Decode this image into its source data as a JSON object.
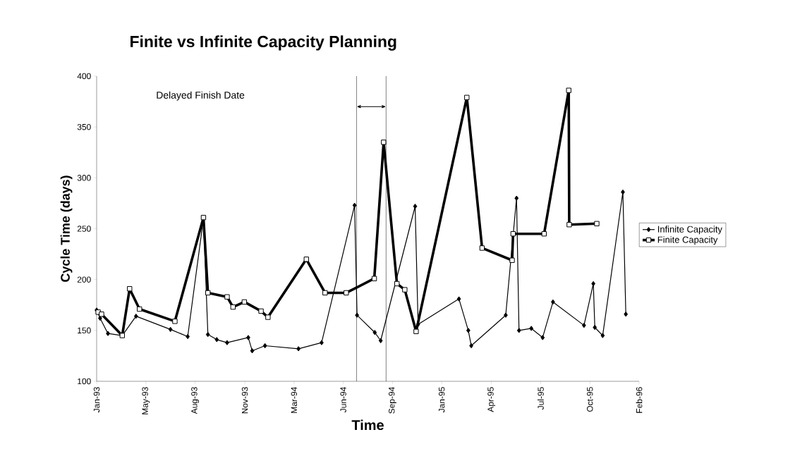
{
  "chart_data": {
    "type": "line",
    "title": "Finite vs Infinite Capacity Planning",
    "xlabel": "Time",
    "ylabel": "Cycle Time (days)",
    "annotations": [
      "Delayed Finish Date"
    ],
    "xlim": [
      "1993-01-31",
      "1996-02-07"
    ],
    "ylim": [
      100,
      400
    ],
    "xticks": [
      {
        "value": "1993-01-31",
        "label": "Jan-93"
      },
      {
        "value": "1993-05-11",
        "label": "May-93"
      },
      {
        "value": "1993-08-19",
        "label": "Aug-93"
      },
      {
        "value": "1993-11-28",
        "label": "Nov-93"
      },
      {
        "value": "1994-03-08",
        "label": "Mar-94"
      },
      {
        "value": "1994-06-16",
        "label": "Jun-94"
      },
      {
        "value": "1994-09-24",
        "label": "Sep-94"
      },
      {
        "value": "1995-01-02",
        "label": "Jan-95"
      },
      {
        "value": "1995-04-13",
        "label": "Apr-95"
      },
      {
        "value": "1995-07-22",
        "label": "Jul-95"
      },
      {
        "value": "1995-10-30",
        "label": "Oct-95"
      },
      {
        "value": "1996-02-07",
        "label": "Feb-96"
      }
    ],
    "yticks": [
      100,
      150,
      200,
      250,
      300,
      350,
      400
    ],
    "ref_lines": [
      {
        "axis": "x",
        "value": "1994-07-13"
      },
      {
        "axis": "x",
        "value": "1994-09-11"
      }
    ],
    "legend": "right",
    "series": [
      {
        "name": "Infinite Capacity",
        "color": "#000000",
        "marker": "diamond",
        "x": [
          "1993-01-31",
          "1993-02-07",
          "1993-02-23",
          "1993-03-24",
          "1993-04-21",
          "1993-06-30",
          "1993-08-04",
          "1993-09-05",
          "1993-09-14",
          "1993-10-02",
          "1993-10-23",
          "1993-12-05",
          "1993-12-13",
          "1994-01-08",
          "1994-03-17",
          "1994-05-03",
          "1994-07-09",
          "1994-07-14",
          "1994-08-19",
          "1994-08-31",
          "1994-11-09",
          "1994-11-15",
          "1995-02-06",
          "1995-02-25",
          "1995-03-03",
          "1995-05-12",
          "1995-06-03",
          "1995-06-08",
          "1995-07-03",
          "1995-07-26",
          "1995-08-16",
          "1995-10-18",
          "1995-11-06",
          "1995-11-09",
          "1995-11-25",
          "1996-01-05",
          "1996-01-11"
        ],
        "values": [
          170,
          162,
          147,
          145,
          164,
          151,
          144,
          260,
          146,
          141,
          138,
          143,
          130,
          135,
          132,
          138,
          273,
          165,
          148,
          140,
          272,
          156,
          181,
          150,
          135,
          165,
          280,
          150,
          152,
          143,
          178,
          155,
          196,
          153,
          145,
          286,
          166
        ]
      },
      {
        "name": "Finite Capacity",
        "color": "#000000",
        "marker": "square",
        "x": [
          "1993-02-03",
          "1993-02-10",
          "1993-03-24",
          "1993-04-08",
          "1993-04-28",
          "1993-07-09",
          "1993-09-05",
          "1993-09-14",
          "1993-10-23",
          "1993-11-04",
          "1993-11-27",
          "1993-12-31",
          "1994-01-14",
          "1994-04-02",
          "1994-05-10",
          "1994-06-22",
          "1994-08-18",
          "1994-09-06",
          "1994-10-03",
          "1994-10-19",
          "1994-11-11",
          "1995-02-22",
          "1995-03-25",
          "1995-05-25",
          "1995-05-27",
          "1995-07-29",
          "1995-09-17",
          "1995-09-18",
          "1995-11-13"
        ],
        "values": [
          168,
          166,
          145,
          191,
          171,
          159,
          261,
          187,
          183,
          173,
          178,
          169,
          163,
          220,
          187,
          187,
          201,
          335,
          196,
          190,
          149,
          379,
          231,
          219,
          245,
          245,
          386,
          254,
          255
        ]
      }
    ]
  }
}
